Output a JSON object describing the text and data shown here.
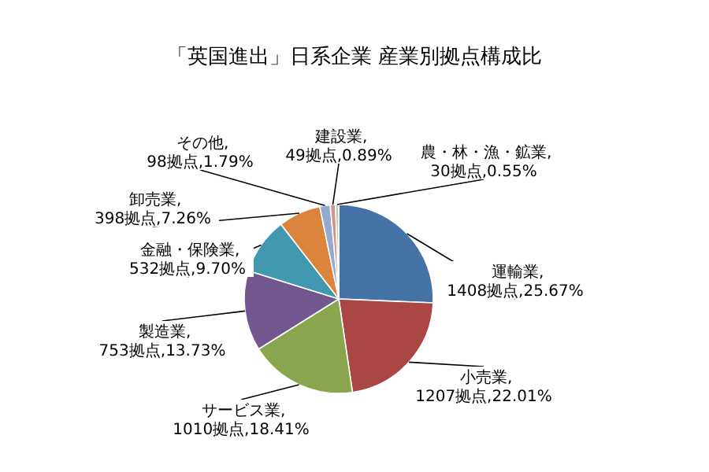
{
  "chart_data": {
    "type": "pie",
    "title": "「英国進出」日系企業 産業別拠点構成比",
    "categories": [
      "運輸業",
      "小売業",
      "サービス業",
      "製造業",
      "金融・保険業",
      "卸売業",
      "その他",
      "建設業",
      "農・林・漁・鉱業"
    ],
    "values": [
      1408,
      1207,
      1010,
      753,
      532,
      398,
      98,
      49,
      30
    ],
    "colors": [
      "#4572a7",
      "#aa4643",
      "#89a54e",
      "#71588f",
      "#4198af",
      "#db843d",
      "#93a9cf",
      "#d19392",
      "#b9cd96"
    ],
    "value_labels": [
      ",1408拠点,25.67%",
      ",1207拠点,22.01%",
      ",1010拠点,18.41%",
      ",753拠点,13.73%",
      ",532拠点,9.70%",
      ",398拠点,7.26%",
      ",98拠点,1.79%",
      ",49拠点,0.89%",
      ",30拠点,0.55%"
    ],
    "legend": false
  }
}
